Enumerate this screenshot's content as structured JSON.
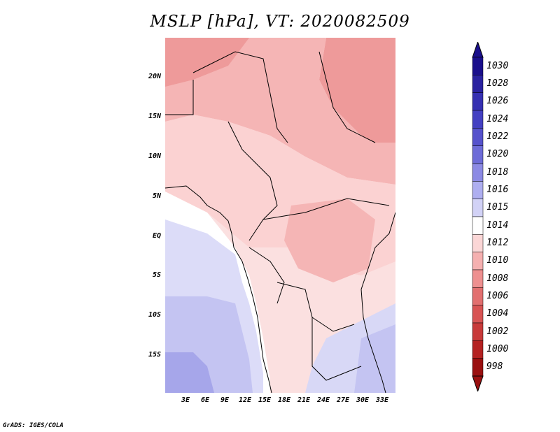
{
  "title": "MSLP [hPa], VT: 2020082509",
  "footer": "GrADS: IGES/COLA",
  "map": {
    "lat_labels": [
      "20N",
      "15N",
      "10N",
      "5N",
      "EQ",
      "5S",
      "10S",
      "15S"
    ],
    "lon_labels": [
      "3E",
      "6E",
      "9E",
      "12E",
      "15E",
      "18E",
      "21E",
      "24E",
      "27E",
      "30E",
      "33E"
    ],
    "lat_values": [
      20,
      15,
      10,
      5,
      0,
      -5,
      -10,
      -15
    ],
    "lon_values": [
      3,
      6,
      9,
      12,
      15,
      18,
      21,
      24,
      27,
      30,
      33
    ]
  },
  "colorbar": {
    "levels": [
      "1030",
      "1028",
      "1026",
      "1024",
      "1022",
      "1020",
      "1018",
      "1016",
      "1015",
      "1014",
      "1012",
      "1010",
      "1008",
      "1006",
      "1004",
      "1002",
      "1000",
      "998"
    ],
    "colors": [
      "#1a0f8c",
      "#2a22a0",
      "#3630b2",
      "#4440c2",
      "#5652cc",
      "#6e6cd8",
      "#8c8ae4",
      "#aeaef0",
      "#d2d2f6",
      "#ffffff",
      "#fbd6d6",
      "#f5b0b0",
      "#ee9090",
      "#e27070",
      "#d85454",
      "#c83a3a",
      "#b42222",
      "#9a1010"
    ]
  },
  "colors": {
    "outline": "#000000",
    "ocean": "#dcdcf8"
  }
}
